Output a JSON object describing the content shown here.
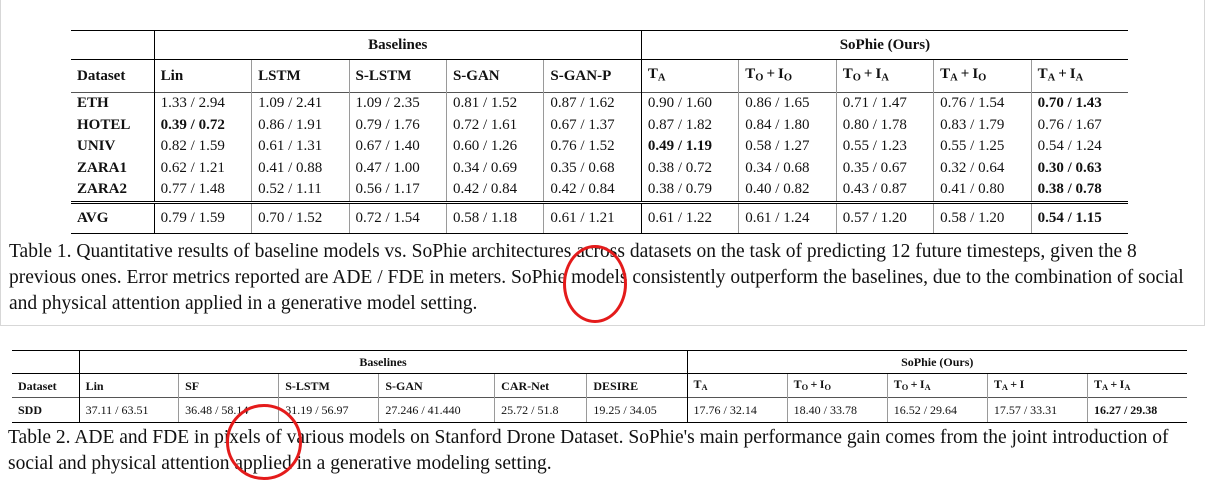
{
  "table1": {
    "group_baselines": "Baselines",
    "group_sophie": "SoPhie (Ours)",
    "header_dataset": "Dataset",
    "baseline_cols": [
      "Lin",
      "LSTM",
      "S-LSTM",
      "S-GAN",
      "S-GAN-P"
    ],
    "sophie_cols": [
      {
        "base": "T",
        "sub": "A",
        "plus_base": "",
        "plus_sub": ""
      },
      {
        "base": "T",
        "sub": "O",
        "plus_base": "I",
        "plus_sub": "O"
      },
      {
        "base": "T",
        "sub": "O",
        "plus_base": "I",
        "plus_sub": "A"
      },
      {
        "base": "T",
        "sub": "A",
        "plus_base": "I",
        "plus_sub": "O"
      },
      {
        "base": "T",
        "sub": "A",
        "plus_base": "I",
        "plus_sub": "A"
      }
    ],
    "rows": [
      {
        "dataset": "ETH",
        "values": [
          "1.33 / 2.94",
          "1.09 / 2.41",
          "1.09 / 2.35",
          "0.81 / 1.52",
          "0.87 / 1.62",
          "0.90 / 1.60",
          "0.86 / 1.65",
          "0.71 / 1.47",
          "0.76 / 1.54",
          "0.70 / 1.43"
        ]
      },
      {
        "dataset": "HOTEL",
        "values": [
          "0.39 / 0.72",
          "0.86 / 1.91",
          "0.79 / 1.76",
          "0.72 / 1.61",
          "0.67 / 1.37",
          "0.87 / 1.82",
          "0.84 / 1.80",
          "0.80 / 1.78",
          "0.83 / 1.79",
          "0.76 / 1.67"
        ]
      },
      {
        "dataset": "UNIV",
        "values": [
          "0.82 / 1.59",
          "0.61 / 1.31",
          "0.67 / 1.40",
          "0.60 / 1.26",
          "0.76 / 1.52",
          "0.49 / 1.19",
          "0.58 / 1.27",
          "0.55 / 1.23",
          "0.55 / 1.25",
          "0.54 / 1.24"
        ]
      },
      {
        "dataset": "ZARA1",
        "values": [
          "0.62 / 1.21",
          "0.41 / 0.88",
          "0.47 / 1.00",
          "0.34 / 0.69",
          "0.35 / 0.68",
          "0.38 / 0.72",
          "0.34 / 0.68",
          "0.35 / 0.67",
          "0.32 / 0.64",
          "0.30 / 0.63"
        ]
      },
      {
        "dataset": "ZARA2",
        "values": [
          "0.77 / 1.48",
          "0.52 / 1.11",
          "0.56 / 1.17",
          "0.42 / 0.84",
          "0.42 / 0.84",
          "0.38 / 0.79",
          "0.40 / 0.82",
          "0.43 / 0.87",
          "0.41 / 0.80",
          "0.38 / 0.78"
        ]
      }
    ],
    "bold_cells": [
      [
        0,
        0,
        9
      ],
      [
        1,
        1,
        0
      ],
      [
        2,
        2,
        5
      ],
      [
        3,
        3,
        9
      ],
      [
        4,
        4,
        9
      ]
    ],
    "avg": {
      "dataset": "AVG",
      "values": [
        "0.79 / 1.59",
        "0.70 / 1.52",
        "0.72 / 1.54",
        "0.58 / 1.18",
        "0.61 / 1.21",
        "0.61 / 1.22",
        "0.61 / 1.24",
        "0.57 / 1.20",
        "0.58 / 1.20",
        "0.54 / 1.15"
      ],
      "bold_index": 9
    },
    "caption": "Table 1. Quantitative results of baseline models vs. SoPhie architectures across datasets on the task of predicting 12 future timesteps, given the 8 previous ones. Error metrics reported are ADE / FDE in meters. SoPhie models consistently outperform the baselines, due to the combination of social and physical attention applied in a generative model setting."
  },
  "table2": {
    "group_baselines": "Baselines",
    "group_sophie": "SoPhie (Ours)",
    "header_dataset": "Dataset",
    "baseline_cols": [
      "Lin",
      "SF",
      "S-LSTM",
      "S-GAN",
      "CAR-Net",
      "DESIRE"
    ],
    "sophie_cols": [
      {
        "base": "T",
        "sub": "A",
        "plus_base": "",
        "plus_sub": ""
      },
      {
        "base": "T",
        "sub": "O",
        "plus_base": "I",
        "plus_sub": "O"
      },
      {
        "base": "T",
        "sub": "O",
        "plus_base": "I",
        "plus_sub": "A"
      },
      {
        "base": "T",
        "sub": "A",
        "plus_base": "I",
        "plus_sub": ""
      },
      {
        "base": "T",
        "sub": "A",
        "plus_base": "I",
        "plus_sub": "A"
      }
    ],
    "row": {
      "dataset": "SDD",
      "values": [
        "37.11 / 63.51",
        "36.48 / 58.14",
        "31.19 / 56.97",
        "27.246 / 41.440",
        "25.72 / 51.8",
        "19.25 / 34.05",
        "17.76 / 32.14",
        "18.40 / 33.78",
        "16.52 / 29.64",
        "17.57 / 33.31",
        "16.27 / 29.38"
      ],
      "bold_index": 10
    },
    "caption": "Table 2. ADE and FDE in pixels of various models on Stanford Drone Dataset. SoPhie's main performance gain comes from the joint introduction of social and physical attention applied in a generative modeling setting."
  },
  "annotations": {
    "circle_color": "#e41b1b"
  }
}
